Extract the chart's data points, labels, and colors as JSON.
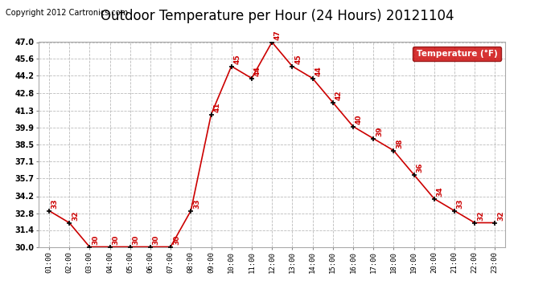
{
  "title": "Outdoor Temperature per Hour (24 Hours) 20121104",
  "copyright": "Copyright 2012 Cartronics.com",
  "legend_label": "Temperature (°F)",
  "hours": [
    "01:00",
    "02:00",
    "03:00",
    "04:00",
    "05:00",
    "06:00",
    "07:00",
    "08:00",
    "09:00",
    "10:00",
    "11:00",
    "12:00",
    "13:00",
    "14:00",
    "15:00",
    "16:00",
    "17:00",
    "18:00",
    "19:00",
    "20:00",
    "21:00",
    "22:00",
    "23:00"
  ],
  "temps": [
    33,
    32,
    30,
    30,
    30,
    30,
    30,
    33,
    41,
    45,
    44,
    47,
    45,
    44,
    42,
    40,
    39,
    38,
    36,
    34,
    33,
    32,
    32
  ],
  "ylim": [
    30.0,
    47.0
  ],
  "yticks": [
    30.0,
    31.4,
    32.8,
    34.2,
    35.7,
    37.1,
    38.5,
    39.9,
    41.3,
    42.8,
    44.2,
    45.6,
    47.0
  ],
  "line_color": "#cc0000",
  "marker_color": "#000000",
  "label_color": "#cc0000",
  "bg_color": "#ffffff",
  "grid_color": "#bbbbbb",
  "title_fontsize": 12,
  "copyright_fontsize": 7,
  "legend_bg": "#cc0000",
  "legend_text_color": "#ffffff"
}
